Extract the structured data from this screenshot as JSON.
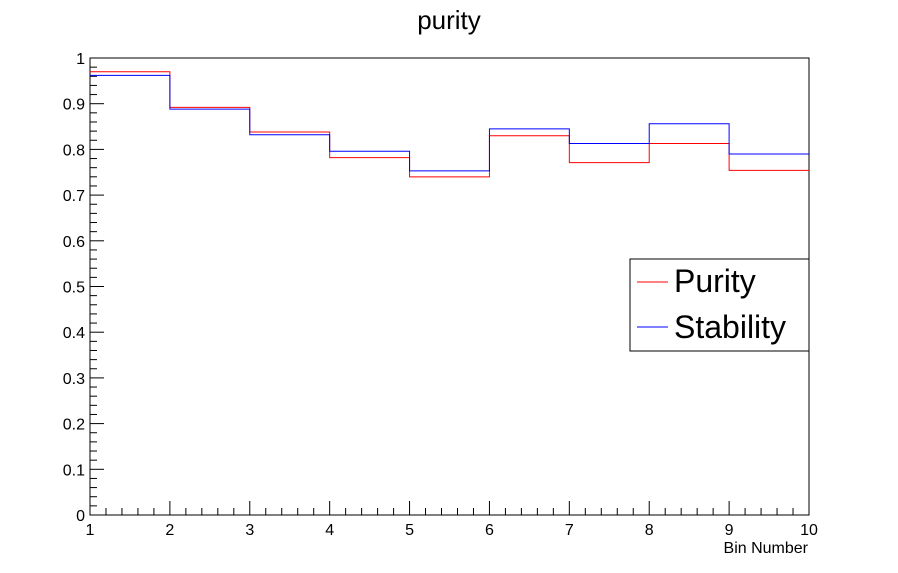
{
  "chart_data": {
    "type": "line",
    "title": "purity",
    "xlabel": "Bin Number",
    "ylabel": "",
    "xlim": [
      1,
      10
    ],
    "ylim": [
      0,
      1
    ],
    "x_ticks": [
      "1",
      "2",
      "3",
      "4",
      "5",
      "6",
      "7",
      "8",
      "9",
      "10"
    ],
    "y_ticks": [
      "0",
      "0.1",
      "0.2",
      "0.3",
      "0.4",
      "0.5",
      "0.6",
      "0.7",
      "0.8",
      "0.9",
      "1"
    ],
    "bin_edges": [
      1,
      2,
      3,
      4,
      5,
      6,
      7,
      8,
      9,
      10
    ],
    "grid": false,
    "legend_position": "right",
    "series": [
      {
        "name": "Purity",
        "color": "#ff0000",
        "values": [
          0.97,
          0.892,
          0.838,
          0.782,
          0.74,
          0.83,
          0.771,
          0.813,
          0.754
        ]
      },
      {
        "name": "Stability",
        "color": "#0000ff",
        "values": [
          0.962,
          0.888,
          0.832,
          0.796,
          0.753,
          0.845,
          0.813,
          0.856,
          0.79
        ]
      }
    ]
  }
}
